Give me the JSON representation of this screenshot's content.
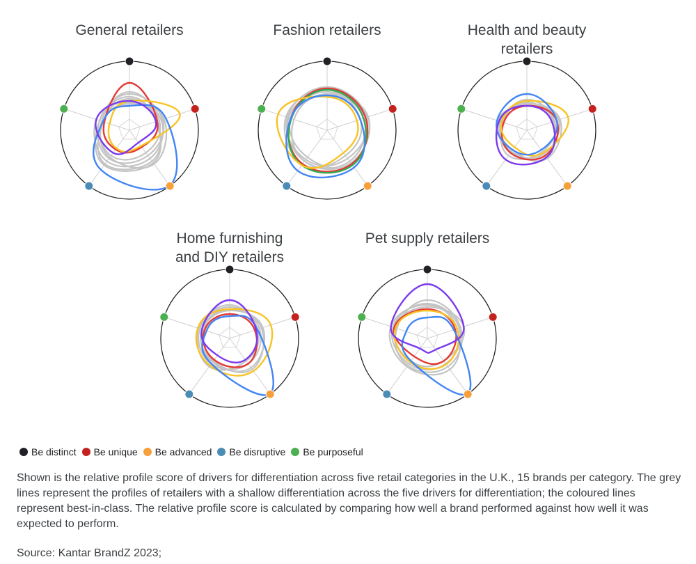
{
  "legend": {
    "items": [
      {
        "label": "Be distinct",
        "color": "#202124"
      },
      {
        "label": "Be unique",
        "color": "#c5221f"
      },
      {
        "label": "Be advanced",
        "color": "#f6a03b"
      },
      {
        "label": "Be disruptive",
        "color": "#4a8cb5"
      },
      {
        "label": "Be purposeful",
        "color": "#4caf50"
      }
    ]
  },
  "caption": "Shown is the relative profile score of drivers for differentiation across five retail categories in the U.K., 15 brands per category. The grey lines represent the profiles of retailers with a shallow differentiation across the five drivers for differentiation; the coloured lines represent best-in-class. The relative profile score is calculated by comparing how well a brand performed against how well it was expected to perform.",
  "source": "Source: Kantar BrandZ 2023;",
  "chart_data": [
    {
      "type": "radar",
      "title": [
        "General retailers"
      ],
      "axes": [
        "Be distinct",
        "Be unique",
        "Be advanced",
        "Be disruptive",
        "Be purposeful"
      ],
      "axis_colors": [
        "#202124",
        "#c5221f",
        "#f6a03b",
        "#4a8cb5",
        "#4caf50"
      ],
      "series": [
        {
          "color": "#e53935",
          "values": [
            0.68,
            0.42,
            0.3,
            0.34,
            0.38
          ]
        },
        {
          "color": "#f7c325",
          "values": [
            0.42,
            0.76,
            0.28,
            0.32,
            0.3
          ]
        },
        {
          "color": "#4285f4",
          "values": [
            0.35,
            0.55,
            0.98,
            0.7,
            0.4
          ]
        },
        {
          "color": "#7c3aed",
          "values": [
            0.42,
            0.4,
            0.22,
            0.4,
            0.5
          ]
        }
      ],
      "grey_profiles": [
        [
          0.52,
          0.5,
          0.45,
          0.5,
          0.45
        ],
        [
          0.45,
          0.42,
          0.55,
          0.6,
          0.4
        ],
        [
          0.4,
          0.48,
          0.5,
          0.55,
          0.5
        ],
        [
          0.55,
          0.45,
          0.4,
          0.45,
          0.42
        ],
        [
          0.38,
          0.52,
          0.6,
          0.48,
          0.4
        ],
        [
          0.48,
          0.4,
          0.58,
          0.62,
          0.45
        ]
      ]
    },
    {
      "type": "radar",
      "title": [
        "Fashion retailers"
      ],
      "axes": [
        "Be distinct",
        "Be unique",
        "Be advanced",
        "Be disruptive",
        "Be purposeful"
      ],
      "axis_colors": [
        "#202124",
        "#c5221f",
        "#f6a03b",
        "#4a8cb5",
        "#4caf50"
      ],
      "series": [
        {
          "color": "#e53935",
          "values": [
            0.6,
            0.58,
            0.6,
            0.6,
            0.55
          ]
        },
        {
          "color": "#34a853",
          "values": [
            0.58,
            0.55,
            0.62,
            0.62,
            0.54
          ]
        },
        {
          "color": "#f7c325",
          "values": [
            0.48,
            0.45,
            0.4,
            0.62,
            0.74
          ]
        },
        {
          "color": "#4285f4",
          "values": [
            0.5,
            0.5,
            0.66,
            0.72,
            0.55
          ]
        }
      ],
      "grey_profiles": [
        [
          0.55,
          0.55,
          0.55,
          0.55,
          0.58
        ],
        [
          0.62,
          0.6,
          0.5,
          0.52,
          0.6
        ],
        [
          0.5,
          0.58,
          0.6,
          0.48,
          0.55
        ],
        [
          0.58,
          0.5,
          0.45,
          0.6,
          0.62
        ],
        [
          0.52,
          0.62,
          0.58,
          0.55,
          0.5
        ]
      ]
    },
    {
      "type": "radar",
      "title": [
        "Health and beauty",
        "retailers"
      ],
      "axes": [
        "Be distinct",
        "Be unique",
        "Be advanced",
        "Be disruptive",
        "Be purposeful"
      ],
      "axis_colors": [
        "#202124",
        "#c5221f",
        "#f6a03b",
        "#4a8cb5",
        "#4caf50"
      ],
      "series": [
        {
          "color": "#e53935",
          "values": [
            0.35,
            0.45,
            0.45,
            0.4,
            0.35
          ]
        },
        {
          "color": "#f7c325",
          "values": [
            0.42,
            0.62,
            0.4,
            0.3,
            0.38
          ]
        },
        {
          "color": "#4285f4",
          "values": [
            0.52,
            0.45,
            0.35,
            0.35,
            0.45
          ]
        },
        {
          "color": "#7c3aed",
          "values": [
            0.35,
            0.38,
            0.48,
            0.52,
            0.42
          ]
        }
      ],
      "grey_profiles": [
        [
          0.4,
          0.4,
          0.45,
          0.4,
          0.4
        ],
        [
          0.36,
          0.48,
          0.42,
          0.38,
          0.44
        ],
        [
          0.44,
          0.42,
          0.38,
          0.45,
          0.36
        ],
        [
          0.38,
          0.5,
          0.5,
          0.35,
          0.4
        ]
      ]
    },
    {
      "type": "radar",
      "title": [
        "Home furnishing",
        "and DIY retailers"
      ],
      "axes": [
        "Be distinct",
        "Be unique",
        "Be advanced",
        "Be disruptive",
        "Be purposeful"
      ],
      "axis_colors": [
        "#202124",
        "#c5221f",
        "#f6a03b",
        "#4a8cb5",
        "#4caf50"
      ],
      "series": [
        {
          "color": "#e53935",
          "values": [
            0.35,
            0.38,
            0.45,
            0.38,
            0.38
          ]
        },
        {
          "color": "#f7c325",
          "values": [
            0.42,
            0.62,
            0.58,
            0.48,
            0.48
          ]
        },
        {
          "color": "#4285f4",
          "values": [
            0.32,
            0.42,
            0.98,
            0.45,
            0.35
          ]
        },
        {
          "color": "#7c3aed",
          "values": [
            0.55,
            0.4,
            0.38,
            0.3,
            0.42
          ]
        }
      ],
      "grey_profiles": [
        [
          0.45,
          0.45,
          0.45,
          0.45,
          0.45
        ],
        [
          0.4,
          0.5,
          0.52,
          0.42,
          0.4
        ],
        [
          0.48,
          0.42,
          0.4,
          0.5,
          0.46
        ],
        [
          0.42,
          0.48,
          0.55,
          0.4,
          0.42
        ]
      ]
    },
    {
      "type": "radar",
      "title": [
        "Pet supply retailers"
      ],
      "axes": [
        "Be distinct",
        "Be unique",
        "Be advanced",
        "Be disruptive",
        "Be purposeful"
      ],
      "axis_colors": [
        "#202124",
        "#c5221f",
        "#f6a03b",
        "#4a8cb5",
        "#4caf50"
      ],
      "series": [
        {
          "color": "#e53935",
          "values": [
            0.42,
            0.42,
            0.4,
            0.32,
            0.5
          ]
        },
        {
          "color": "#f7c325",
          "values": [
            0.4,
            0.45,
            0.46,
            0.42,
            0.48
          ]
        },
        {
          "color": "#4285f4",
          "values": [
            0.3,
            0.4,
            0.98,
            0.4,
            0.32
          ]
        },
        {
          "color": "#7c3aed",
          "values": [
            0.78,
            0.55,
            0.2,
            0.18,
            0.55
          ]
        }
      ],
      "grey_profiles": [
        [
          0.5,
          0.48,
          0.45,
          0.45,
          0.52
        ],
        [
          0.45,
          0.55,
          0.4,
          0.4,
          0.5
        ],
        [
          0.55,
          0.5,
          0.5,
          0.48,
          0.46
        ],
        [
          0.48,
          0.45,
          0.55,
          0.5,
          0.55
        ]
      ]
    }
  ]
}
